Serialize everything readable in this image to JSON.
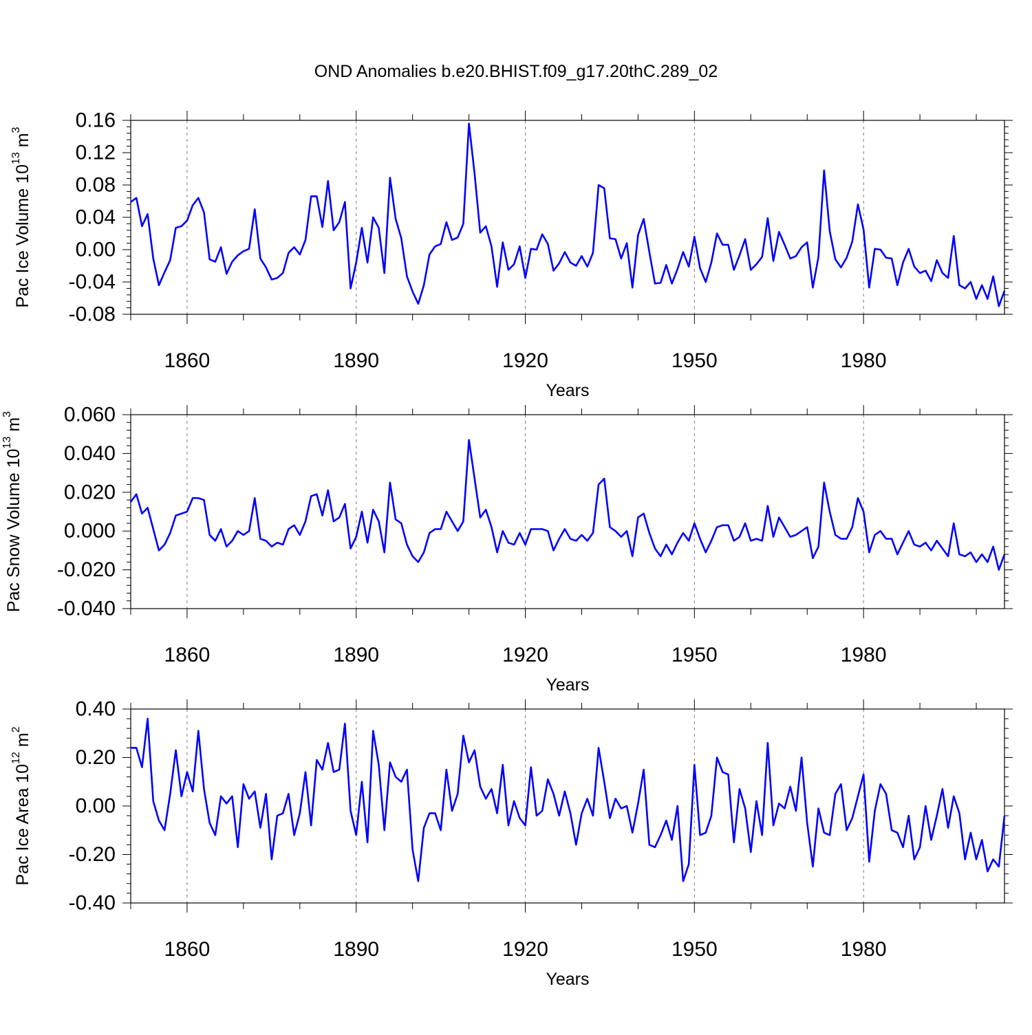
{
  "title": "OND Anomalies b.e20.BHIST.f09_g17.20thC.289_02",
  "colors": {
    "line": "#0000ff",
    "axis": "#000000",
    "grid": "#777777"
  },
  "chart_data": [
    {
      "type": "line",
      "name": "ice-volume",
      "ylabel": "Pac Ice Volume 10",
      "ylabel_exp": "13",
      "ylabel_unit": "m",
      "ylabel_unit_exp": "3",
      "xlabel": "Years",
      "xlim": [
        1850,
        2005
      ],
      "ylim": [
        -0.08,
        0.16
      ],
      "y_ticks": [
        -0.08,
        -0.04,
        0.0,
        0.04,
        0.08,
        0.12,
        0.16
      ],
      "y_tick_labels": [
        "-0.08",
        "-0.04",
        "0.00",
        "0.04",
        "0.08",
        "0.12",
        "0.16"
      ],
      "y_minor_step": 0.008,
      "x_ticks": [
        1860,
        1890,
        1920,
        1950,
        1980
      ],
      "x_tick_labels": [
        "1860",
        "1890",
        "1920",
        "1950",
        "1980"
      ],
      "x_minor_step": 10,
      "grid_x": true,
      "x_start": 1850,
      "values": [
        0.059,
        0.064,
        0.029,
        0.044,
        -0.011,
        -0.044,
        -0.028,
        -0.013,
        0.027,
        0.029,
        0.036,
        0.055,
        0.064,
        0.046,
        -0.012,
        -0.015,
        0.003,
        -0.03,
        -0.015,
        -0.007,
        -0.002,
        0.001,
        0.05,
        -0.011,
        -0.022,
        -0.037,
        -0.035,
        -0.029,
        -0.004,
        0.003,
        -0.006,
        0.012,
        0.066,
        0.066,
        0.028,
        0.085,
        0.024,
        0.034,
        0.059,
        -0.048,
        -0.016,
        0.027,
        -0.016,
        0.04,
        0.027,
        -0.029,
        0.089,
        0.038,
        0.014,
        -0.033,
        -0.052,
        -0.067,
        -0.044,
        -0.006,
        0.004,
        0.007,
        0.034,
        0.012,
        0.015,
        0.032,
        0.156,
        0.094,
        0.021,
        0.029,
        0.004,
        -0.046,
        0.009,
        -0.025,
        -0.018,
        0.004,
        -0.035,
        0.001,
        0.0,
        0.019,
        0.007,
        -0.026,
        -0.017,
        -0.003,
        -0.016,
        -0.02,
        -0.008,
        -0.021,
        -0.004,
        0.08,
        0.076,
        0.014,
        0.013,
        -0.011,
        0.008,
        -0.047,
        0.018,
        0.038,
        -0.003,
        -0.042,
        -0.041,
        -0.019,
        -0.042,
        -0.024,
        -0.003,
        -0.021,
        0.016,
        -0.023,
        -0.04,
        -0.016,
        0.02,
        0.006,
        0.006,
        -0.025,
        -0.007,
        0.013,
        -0.025,
        -0.018,
        -0.009,
        0.039,
        -0.014,
        0.022,
        0.006,
        -0.011,
        -0.008,
        0.003,
        0.009,
        -0.047,
        -0.009,
        0.098,
        0.023,
        -0.012,
        -0.022,
        -0.01,
        0.01,
        0.056,
        0.025,
        -0.047,
        0.001,
        0.0,
        -0.01,
        -0.011,
        -0.044,
        -0.016,
        0.001,
        -0.021,
        -0.029,
        -0.026,
        -0.039,
        -0.013,
        -0.029,
        -0.035,
        0.017,
        -0.044,
        -0.048,
        -0.04,
        -0.061,
        -0.044,
        -0.061,
        -0.033,
        -0.07,
        -0.051
      ]
    },
    {
      "type": "line",
      "name": "snow-volume",
      "ylabel": "Pac Snow Volume 10",
      "ylabel_exp": "13",
      "ylabel_unit": "m",
      "ylabel_unit_exp": "3",
      "xlabel": "Years",
      "xlim": [
        1850,
        2005
      ],
      "ylim": [
        -0.04,
        0.06
      ],
      "y_ticks": [
        -0.04,
        -0.02,
        0.0,
        0.02,
        0.04,
        0.06
      ],
      "y_tick_labels": [
        "-0.040",
        "-0.020",
        "0.000",
        "0.020",
        "0.040",
        "0.060"
      ],
      "y_minor_step": 0.004,
      "x_ticks": [
        1860,
        1890,
        1920,
        1950,
        1980
      ],
      "x_tick_labels": [
        "1860",
        "1890",
        "1920",
        "1950",
        "1980"
      ],
      "x_minor_step": 10,
      "grid_x": true,
      "x_start": 1850,
      "values": [
        0.015,
        0.019,
        0.009,
        0.012,
        0.001,
        -0.01,
        -0.007,
        -0.001,
        0.008,
        0.009,
        0.01,
        0.017,
        0.017,
        0.016,
        -0.002,
        -0.005,
        0.001,
        -0.008,
        -0.005,
        0.0,
        -0.002,
        0.0,
        0.017,
        -0.004,
        -0.005,
        -0.008,
        -0.006,
        -0.007,
        0.001,
        0.003,
        -0.002,
        0.005,
        0.018,
        0.019,
        0.008,
        0.021,
        0.005,
        0.007,
        0.014,
        -0.009,
        -0.003,
        0.01,
        -0.006,
        0.011,
        0.005,
        -0.011,
        0.025,
        0.006,
        0.004,
        -0.007,
        -0.013,
        -0.016,
        -0.011,
        -0.001,
        0.001,
        0.001,
        0.01,
        0.005,
        0.0,
        0.005,
        0.047,
        0.027,
        0.007,
        0.011,
        0.002,
        -0.011,
        0.0,
        -0.006,
        -0.007,
        -0.001,
        -0.007,
        0.001,
        0.001,
        0.001,
        0.0,
        -0.01,
        -0.004,
        0.001,
        -0.004,
        -0.005,
        -0.002,
        -0.005,
        -0.001,
        0.024,
        0.027,
        0.002,
        0.0,
        -0.003,
        0.0,
        -0.013,
        0.007,
        0.009,
        -0.001,
        -0.009,
        -0.013,
        -0.007,
        -0.012,
        -0.006,
        -0.001,
        -0.005,
        0.004,
        -0.004,
        -0.011,
        -0.005,
        0.002,
        0.003,
        0.003,
        -0.005,
        -0.003,
        0.004,
        -0.005,
        -0.004,
        -0.005,
        0.013,
        -0.003,
        0.007,
        0.002,
        -0.003,
        -0.002,
        0.0,
        0.002,
        -0.014,
        -0.008,
        0.025,
        0.01,
        -0.002,
        -0.004,
        -0.004,
        0.002,
        0.017,
        0.01,
        -0.011,
        -0.002,
        0.0,
        -0.004,
        -0.004,
        -0.012,
        -0.006,
        0.0,
        -0.007,
        -0.008,
        -0.006,
        -0.01,
        -0.005,
        -0.009,
        -0.013,
        0.004,
        -0.012,
        -0.013,
        -0.011,
        -0.016,
        -0.012,
        -0.016,
        -0.008,
        -0.02,
        -0.012
      ]
    },
    {
      "type": "line",
      "name": "ice-area",
      "ylabel": "Pac Ice Area 10",
      "ylabel_exp": "12",
      "ylabel_unit": "m",
      "ylabel_unit_exp": "2",
      "xlabel": "Years",
      "xlim": [
        1850,
        2005
      ],
      "ylim": [
        -0.4,
        0.4
      ],
      "y_ticks": [
        -0.4,
        -0.2,
        0.0,
        0.2,
        0.4
      ],
      "y_tick_labels": [
        "-0.40",
        "-0.20",
        "0.00",
        "0.20",
        "0.40"
      ],
      "y_minor_step": 0.04,
      "x_ticks": [
        1860,
        1890,
        1920,
        1950,
        1980
      ],
      "x_tick_labels": [
        "1860",
        "1890",
        "1920",
        "1950",
        "1980"
      ],
      "x_minor_step": 10,
      "grid_x": true,
      "x_start": 1850,
      "values": [
        0.24,
        0.24,
        0.16,
        0.36,
        0.02,
        -0.06,
        -0.1,
        0.05,
        0.23,
        0.04,
        0.14,
        0.06,
        0.31,
        0.07,
        -0.07,
        -0.12,
        0.04,
        0.01,
        0.04,
        -0.17,
        0.09,
        0.03,
        0.06,
        -0.09,
        0.05,
        -0.22,
        -0.04,
        -0.03,
        0.05,
        -0.12,
        -0.03,
        0.14,
        -0.08,
        0.19,
        0.15,
        0.26,
        0.14,
        0.15,
        0.34,
        -0.02,
        -0.12,
        0.1,
        -0.15,
        0.31,
        0.17,
        -0.1,
        0.18,
        0.12,
        0.1,
        0.15,
        -0.18,
        -0.31,
        -0.09,
        -0.03,
        -0.03,
        -0.1,
        0.15,
        -0.02,
        0.05,
        0.29,
        0.18,
        0.23,
        0.08,
        0.03,
        0.07,
        -0.03,
        0.17,
        -0.08,
        0.02,
        -0.05,
        -0.08,
        0.16,
        -0.04,
        -0.02,
        0.11,
        0.05,
        -0.04,
        0.06,
        -0.03,
        -0.16,
        -0.03,
        0.03,
        -0.04,
        0.24,
        0.1,
        -0.05,
        0.03,
        -0.01,
        0.0,
        -0.11,
        0.01,
        0.15,
        -0.16,
        -0.17,
        -0.12,
        -0.06,
        -0.14,
        0.0,
        -0.31,
        -0.24,
        0.17,
        -0.12,
        -0.11,
        -0.04,
        0.2,
        0.14,
        0.13,
        -0.15,
        0.07,
        -0.01,
        -0.19,
        0.02,
        -0.12,
        0.26,
        -0.08,
        0.01,
        -0.01,
        0.08,
        -0.02,
        0.2,
        -0.07,
        -0.25,
        -0.01,
        -0.11,
        -0.12,
        0.05,
        0.09,
        -0.1,
        -0.05,
        0.04,
        0.13,
        -0.23,
        -0.02,
        0.09,
        0.05,
        -0.1,
        -0.11,
        -0.17,
        -0.04,
        -0.22,
        -0.17,
        0.0,
        -0.14,
        -0.04,
        0.07,
        -0.09,
        0.04,
        -0.03,
        -0.22,
        -0.11,
        -0.22,
        -0.14,
        -0.27,
        -0.22,
        -0.25,
        -0.04
      ]
    }
  ]
}
